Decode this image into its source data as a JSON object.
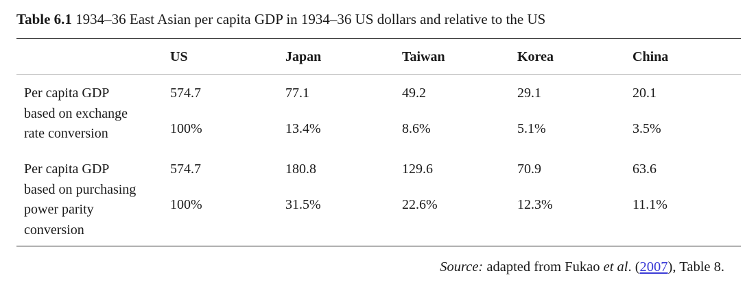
{
  "caption": {
    "number": "Table 6.1",
    "text": "1934–36 East Asian per capita GDP in 1934–36 US dollars and relative to the US"
  },
  "table": {
    "columns": [
      "US",
      "Japan",
      "Taiwan",
      "Korea",
      "China"
    ],
    "rows": [
      {
        "label_lines": [
          "Per capita GDP",
          "based on exchange",
          "rate conversion"
        ],
        "values": [
          "574.7",
          "77.1",
          "49.2",
          "29.1",
          "20.1"
        ],
        "percents": [
          "100%",
          "13.4%",
          "8.6%",
          "5.1%",
          "3.5%"
        ]
      },
      {
        "label_lines": [
          "Per capita GDP",
          "based on purchasing",
          "power parity",
          "conversion"
        ],
        "values": [
          "574.7",
          "180.8",
          "129.6",
          "70.9",
          "63.6"
        ],
        "percents": [
          "100%",
          "31.5%",
          "22.6%",
          "12.3%",
          "11.1%"
        ]
      }
    ]
  },
  "source": {
    "label": "Source:",
    "text_before": " adapted from Fukao ",
    "et_al": "et al",
    "text_mid": ". (",
    "link": "2007",
    "text_after": "), Table 8."
  }
}
